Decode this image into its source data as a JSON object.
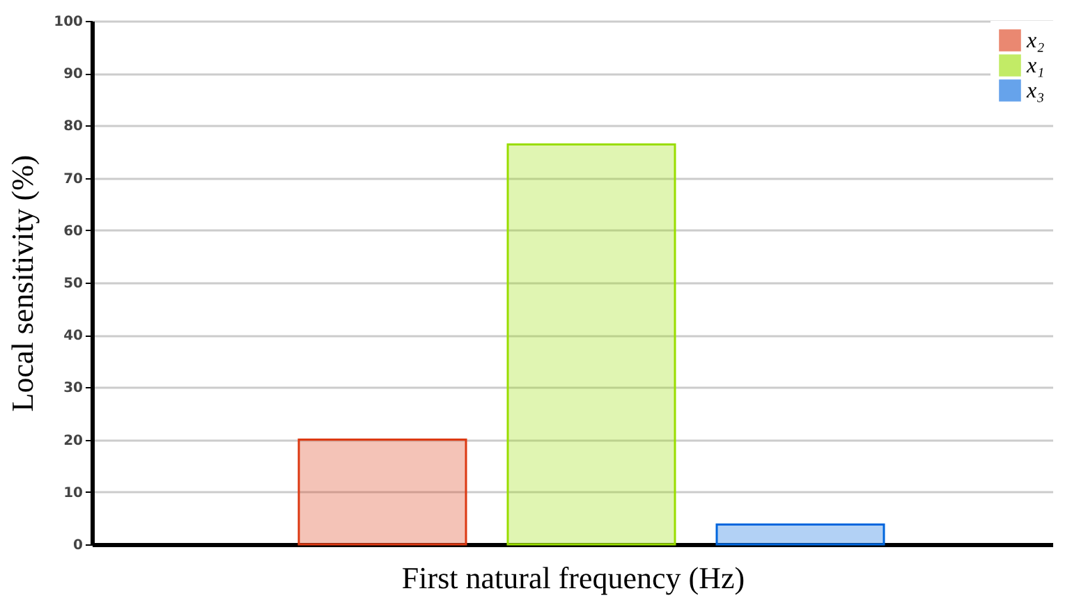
{
  "chart_data": {
    "type": "bar",
    "xlabel": "First natural frequency (Hz)",
    "ylabel": "Local sensitivity (%)",
    "categories": [
      null,
      null,
      null
    ],
    "series": [
      {
        "name": "x₂",
        "color": "#dc3912",
        "values": [
          20,
          null,
          null
        ]
      },
      {
        "name": "x₁",
        "color": "#99dd00",
        "values": [
          null,
          76.4,
          null
        ]
      },
      {
        "name": "x₃",
        "color": "#0066dd",
        "values": [
          null,
          null,
          3.8
        ]
      }
    ],
    "ylim": [
      0,
      100
    ],
    "yticks": [
      0,
      10,
      20,
      30,
      40,
      50,
      60,
      70,
      80,
      90,
      100
    ],
    "grid": "y",
    "legend": "top right"
  }
}
